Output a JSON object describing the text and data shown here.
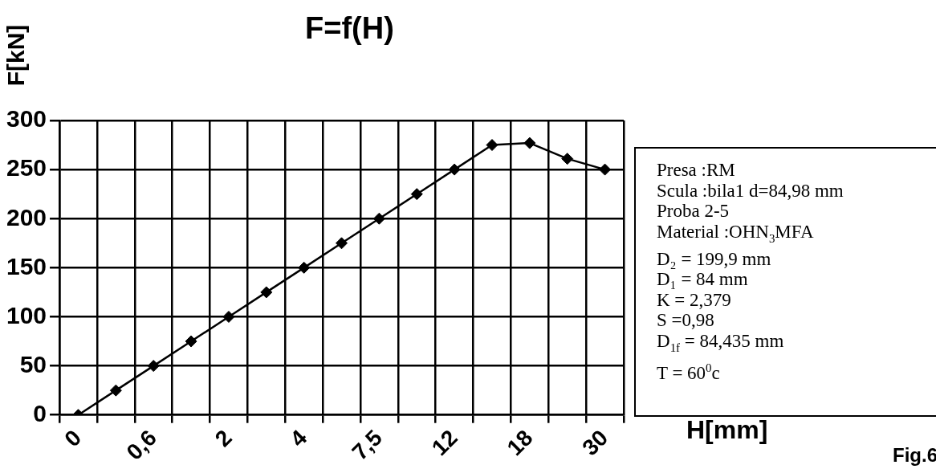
{
  "chart_data": {
    "type": "line",
    "title": "F=f(H)",
    "xlabel": "H[mm]",
    "ylabel": "F[kN]",
    "categories": [
      "0",
      null,
      "0,6",
      null,
      "2",
      null,
      "4",
      null,
      "7,5",
      null,
      "12",
      null,
      "18",
      null,
      "30"
    ],
    "series": [
      {
        "color": "#000000",
        "values": [
          0,
          25,
          50,
          75,
          100,
          125,
          150,
          175,
          200,
          225,
          250,
          275,
          277,
          261,
          250
        ]
      }
    ],
    "ylim": [
      0,
      300
    ],
    "yticks": [
      0,
      50,
      100,
      150,
      200,
      250,
      300
    ],
    "grid": true,
    "legend": false,
    "marker": "diamond",
    "line_style": "solid",
    "annotations": [
      "Presa :RM",
      "Scula :bila1  d=84,98 mm",
      "Proba 2-5",
      "Material :OHN$_{3}$MFA",
      "D₂ = 199,9 mm",
      "D₁ = 84 mm",
      "K = 2,379",
      "S =0,98",
      "D$_{1f}$ = 84,435 mm",
      "T = 60$^{0}$c",
      "Fig.6"
    ]
  }
}
